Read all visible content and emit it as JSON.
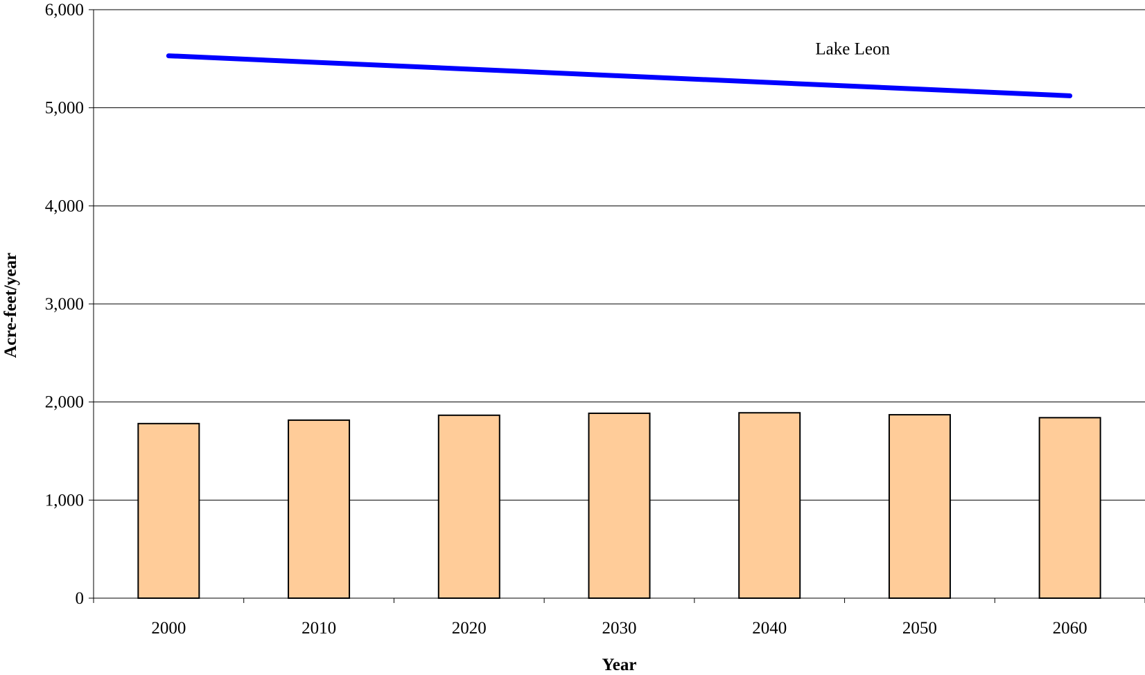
{
  "chart_data": {
    "type": "bar",
    "title": "",
    "xlabel": "Year",
    "ylabel": "Acre-feet/year",
    "categories": [
      "2000",
      "2010",
      "2020",
      "2030",
      "2040",
      "2050",
      "2060"
    ],
    "ylim": [
      0,
      6000
    ],
    "yticks": [
      "0",
      "1,000",
      "2,000",
      "3,000",
      "4,000",
      "5,000",
      "6,000"
    ],
    "grid": true,
    "series": [
      {
        "type": "bar",
        "values": [
          1780,
          1815,
          1865,
          1885,
          1890,
          1870,
          1840
        ],
        "color": "#FFCC99",
        "edge_color": "#000000"
      },
      {
        "type": "line",
        "name": "Lake Leon",
        "values": [
          5530,
          5462,
          5394,
          5326,
          5258,
          5190,
          5122
        ],
        "color": "#0000FF"
      }
    ],
    "annotations": [
      {
        "text": "Lake Leon",
        "x": "2040",
        "y": 5600
      }
    ]
  }
}
